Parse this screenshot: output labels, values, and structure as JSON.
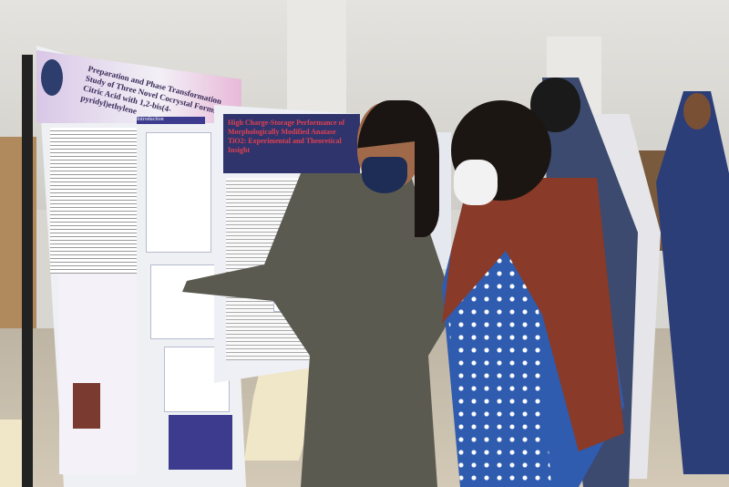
{
  "scene": {
    "description_tag": "poster-session-photo"
  },
  "posters": [
    {
      "title": "Preparation and Phase Transformation Study of Three Novel Cocrystal Forms of Citric Acid with 1,2-bis(4-pyridyl)ethylene",
      "section": "Introduction"
    },
    {
      "title": "High Charge-Storage Performance of Morphologically Modified Anatase TiO2: Experimental and Theoretical Insight"
    }
  ],
  "colors": {
    "poster_header": "#30346c",
    "dress": "#5a5a50",
    "kurta": "#2f5cae",
    "shawl": "#8a3a28"
  }
}
